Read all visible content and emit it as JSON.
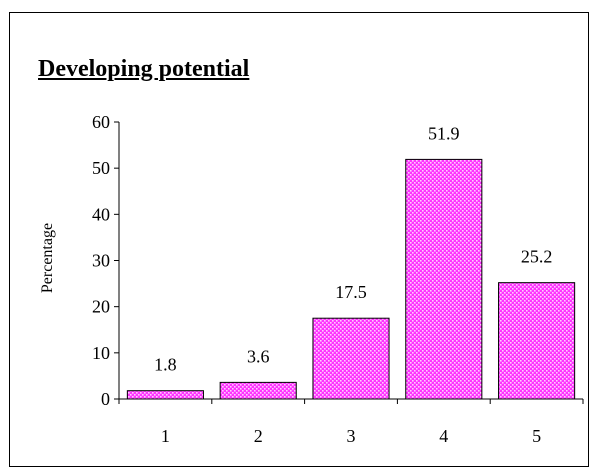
{
  "chart_data": {
    "type": "bar",
    "title": "Developing potential",
    "xlabel": "",
    "ylabel": "Percentage",
    "categories": [
      "1",
      "2",
      "3",
      "4",
      "5"
    ],
    "values": [
      1.8,
      3.6,
      17.5,
      51.9,
      25.2
    ],
    "data_labels": [
      "1.8",
      "3.6",
      "17.5",
      "51.9",
      "25.2"
    ],
    "ylim": [
      0,
      60
    ],
    "yticks": [
      0,
      10,
      20,
      30,
      40,
      50,
      60
    ],
    "grid": false,
    "legend": "none",
    "bar_color": "#ff33ff",
    "bar_pattern_color": "#ffccff"
  }
}
